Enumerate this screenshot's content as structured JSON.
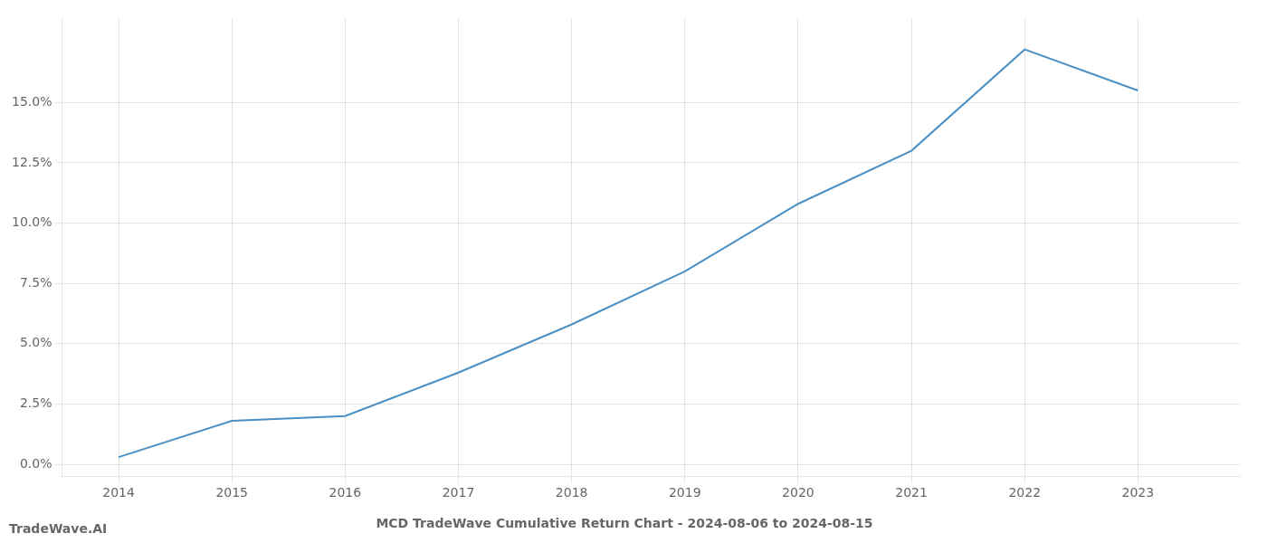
{
  "chart_data": {
    "type": "line",
    "title": "MCD TradeWave Cumulative Return Chart - 2024-08-06 to 2024-08-15",
    "annotations": [
      "TradeWave.AI"
    ],
    "x": [
      2014,
      2015,
      2016,
      2017,
      2018,
      2019,
      2020,
      2021,
      2022,
      2023
    ],
    "values": [
      0.003,
      0.018,
      0.02,
      0.038,
      0.058,
      0.08,
      0.108,
      0.13,
      0.172,
      0.155
    ],
    "color": "#4a90c4",
    "xlim": [
      2013.5,
      2023.9
    ],
    "ylim": [
      -0.005,
      0.185
    ],
    "xticks": [
      2014,
      2015,
      2016,
      2017,
      2018,
      2019,
      2020,
      2021,
      2022,
      2023
    ],
    "yticks": [
      {
        "value": 0.0,
        "label": "0.0%"
      },
      {
        "value": 0.025,
        "label": "2.5%"
      },
      {
        "value": 0.05,
        "label": "5.0%"
      },
      {
        "value": 0.075,
        "label": "7.5%"
      },
      {
        "value": 0.1,
        "label": "10.0%"
      },
      {
        "value": 0.125,
        "label": "12.5%"
      },
      {
        "value": 0.15,
        "label": "15.0%"
      }
    ],
    "grid": true
  }
}
